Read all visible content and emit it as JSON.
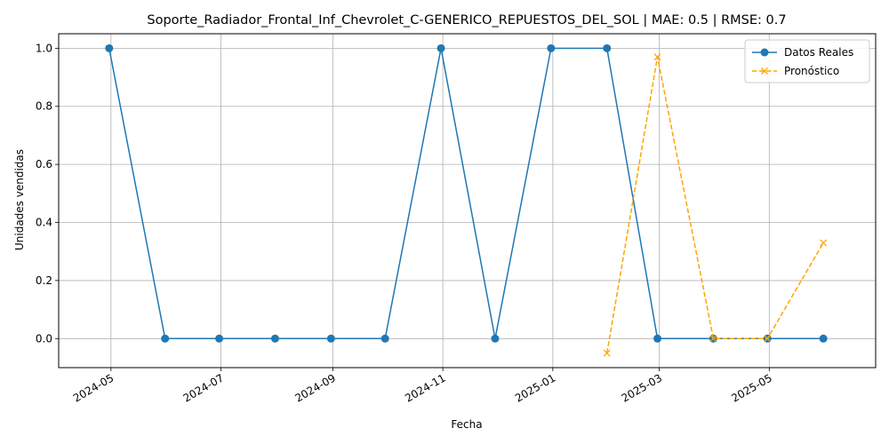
{
  "chart_data": {
    "type": "line",
    "title": "Soporte_Radiador_Frontal_Inf_Chevrolet_C-GENERICO_REPUESTOS_DEL_SOL | MAE: 0.5 | RMSE: 0.7",
    "xlabel": "Fecha",
    "ylabel": "Unidades vendidas",
    "xlim": [
      "2024-04-02",
      "2025-06-29"
    ],
    "ylim": [
      -0.1,
      1.05
    ],
    "x_ticks": [
      "2024-05",
      "2024-07",
      "2024-09",
      "2024-11",
      "2025-01",
      "2025-03",
      "2025-05"
    ],
    "y_ticks": [
      "0.0",
      "0.2",
      "0.4",
      "0.6",
      "0.8",
      "1.0"
    ],
    "grid": true,
    "legend_position": "top-right",
    "series": [
      {
        "name": "Datos Reales",
        "color": "#1f77b4",
        "style": "solid",
        "marker": "circle",
        "points": [
          {
            "x": "2024-04-30",
            "y": 1
          },
          {
            "x": "2024-05-31",
            "y": 0
          },
          {
            "x": "2024-06-30",
            "y": 0
          },
          {
            "x": "2024-07-31",
            "y": 0
          },
          {
            "x": "2024-08-31",
            "y": 0
          },
          {
            "x": "2024-09-30",
            "y": 0
          },
          {
            "x": "2024-10-31",
            "y": 1
          },
          {
            "x": "2024-11-30",
            "y": 0
          },
          {
            "x": "2024-12-31",
            "y": 1
          },
          {
            "x": "2025-01-31",
            "y": 1
          },
          {
            "x": "2025-02-28",
            "y": 0
          },
          {
            "x": "2025-03-31",
            "y": 0
          },
          {
            "x": "2025-04-30",
            "y": 0
          },
          {
            "x": "2025-05-31",
            "y": 0
          }
        ]
      },
      {
        "name": "Pronóstico",
        "color": "#ffa500",
        "style": "dashed",
        "marker": "x",
        "points": [
          {
            "x": "2025-01-31",
            "y": -0.05
          },
          {
            "x": "2025-02-28",
            "y": 0.97
          },
          {
            "x": "2025-03-31",
            "y": 0.0
          },
          {
            "x": "2025-04-30",
            "y": 0.0
          },
          {
            "x": "2025-05-31",
            "y": 0.33
          }
        ]
      }
    ]
  }
}
